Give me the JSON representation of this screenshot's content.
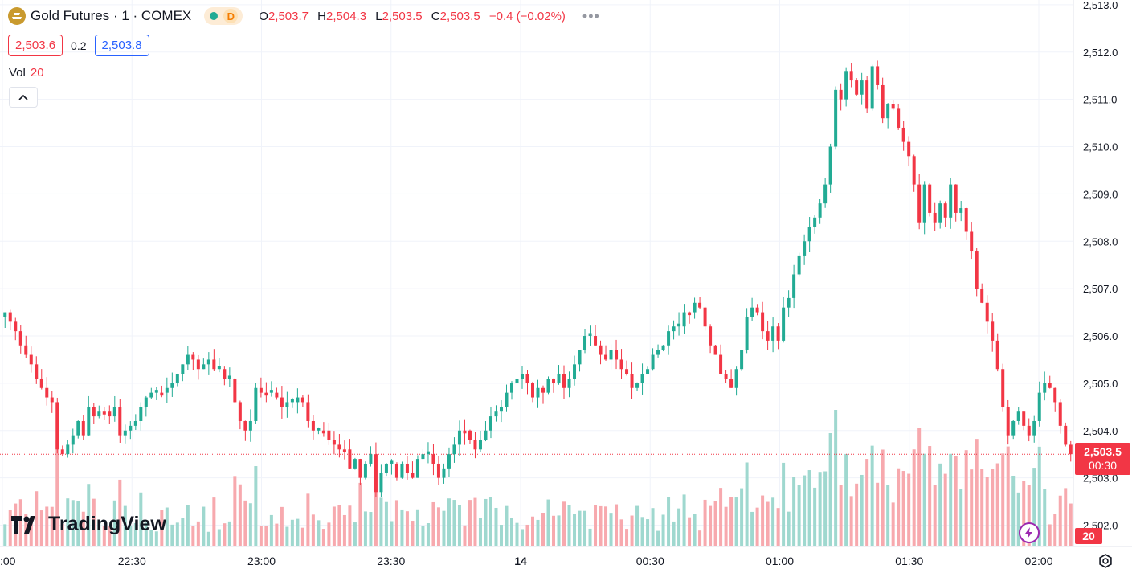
{
  "header": {
    "symbol": "Gold Futures · 1 · COMEX",
    "status_badge": "D",
    "ohlc": {
      "o_label": "O",
      "o": "2,503.7",
      "h_label": "H",
      "h": "2,504.3",
      "l_label": "L",
      "l": "2,503.5",
      "c_label": "C",
      "c": "2,503.5",
      "change": "−0.4 (−0.02%)"
    },
    "more": "•••"
  },
  "quote": {
    "bid": "2,503.6",
    "spread": "0.2",
    "ask": "2,503.8"
  },
  "volume_indicator": {
    "label": "Vol",
    "value": "20"
  },
  "watermark": "TradingView",
  "price_tag": {
    "price": "2,503.5",
    "countdown": "00:30"
  },
  "volume_tag": "20",
  "colors": {
    "up": "#22ab94",
    "down": "#f23645",
    "up_vol": "#9fd8cf",
    "down_vol": "#f7a9ae",
    "grid": "#f0f3fa",
    "text": "#131722"
  },
  "icons": [
    "gold-logo-icon",
    "market-open-dot-icon",
    "collapse-chevron-up-icon",
    "tradingview-logo-icon",
    "lightning-bolt-icon",
    "settings-icon"
  ],
  "chart_data": {
    "type": "candlestick",
    "y_axis": {
      "range": [
        2501.55,
        2513.1
      ],
      "ticks": [
        2502,
        2503,
        2504,
        2505,
        2506,
        2507,
        2508,
        2509,
        2510,
        2511,
        2512,
        2513
      ],
      "tick_labels": [
        "2,502.0",
        "2,503.0",
        "2,504.0",
        "2,505.0",
        "2,506.0",
        "2,507.0",
        "2,508.0",
        "2,509.0",
        "2,510.0",
        "2,511.0",
        "2,512.0",
        "2,513.0"
      ]
    },
    "x_axis": {
      "tick_labels": [
        ":00",
        "22:30",
        "23:00",
        "23:30",
        "14",
        "00:30",
        "01:00",
        "01:30",
        "02:00"
      ],
      "tick_minutes": [
        0,
        30,
        60,
        90,
        120,
        150,
        180,
        210,
        240
      ],
      "range_minutes": [
        0,
        248
      ]
    },
    "last_price": 2503.5,
    "closes": [
      2506.5,
      2506.3,
      2506.1,
      2505.8,
      2505.6,
      2505.4,
      2505.1,
      2504.9,
      2504.7,
      2504.6,
      2503.6,
      2503.5,
      2503.7,
      2503.9,
      2504.2,
      2503.9,
      2504.5,
      2504.3,
      2504.4,
      2504.4,
      2504.3,
      2504.5,
      2503.9,
      2504.0,
      2504.1,
      2504.2,
      2504.5,
      2504.7,
      2504.8,
      2504.8,
      2504.8,
      2504.9,
      2505.0,
      2505.2,
      2505.4,
      2505.6,
      2505.5,
      2505.3,
      2505.4,
      2505.5,
      2505.3,
      2505.3,
      2505.1,
      2505.1,
      2504.6,
      2504.2,
      2504.0,
      2504.2,
      2504.9,
      2504.8,
      2504.8,
      2504.8,
      2504.7,
      2504.5,
      2504.6,
      2504.6,
      2504.7,
      2504.6,
      2504.2,
      2504.0,
      2504.0,
      2504.0,
      2503.8,
      2503.7,
      2503.6,
      2503.6,
      2503.2,
      2503.4,
      2503.0,
      2503.3,
      2503.5,
      2502.7,
      2503.1,
      2503.3,
      2503.3,
      2503.0,
      2503.3,
      2503.1,
      2503.0,
      2503.4,
      2503.5,
      2503.5,
      2503.3,
      2503.0,
      2503.2,
      2503.5,
      2503.7,
      2504.0,
      2504.0,
      2503.8,
      2503.6,
      2503.8,
      2504.0,
      2504.3,
      2504.4,
      2504.5,
      2504.8,
      2505.0,
      2505.1,
      2505.2,
      2505.0,
      2504.7,
      2504.9,
      2504.8,
      2505.1,
      2505.0,
      2505.2,
      2504.9,
      2505.1,
      2505.4,
      2505.7,
      2506.0,
      2506.0,
      2505.8,
      2505.6,
      2505.5,
      2505.7,
      2505.5,
      2505.3,
      2505.2,
      2504.9,
      2505.0,
      2505.2,
      2505.3,
      2505.6,
      2505.7,
      2505.8,
      2506.1,
      2506.2,
      2506.2,
      2506.5,
      2506.5,
      2506.7,
      2506.6,
      2506.2,
      2505.8,
      2505.6,
      2505.2,
      2505.1,
      2504.9,
      2505.3,
      2505.7,
      2506.4,
      2506.6,
      2506.5,
      2506.1,
      2505.9,
      2506.2,
      2505.9,
      2506.6,
      2506.8,
      2507.3,
      2507.7,
      2508.0,
      2508.3,
      2508.5,
      2508.8,
      2509.2,
      2510.0,
      2511.2,
      2511.0,
      2511.6,
      2511.4,
      2511.1,
      2511.4,
      2510.8,
      2511.7,
      2511.3,
      2510.6,
      2510.9,
      2510.8,
      2510.4,
      2510.1,
      2509.8,
      2509.2,
      2508.4,
      2509.2,
      2508.6,
      2508.4,
      2508.8,
      2508.5,
      2509.2,
      2508.6,
      2508.7,
      2508.2,
      2507.8,
      2507.0,
      2506.7,
      2506.3,
      2505.9,
      2505.3,
      2504.5,
      2503.9,
      2504.2,
      2504.4,
      2504.1,
      2503.9,
      2504.2,
      2504.8,
      2505.0,
      2504.9,
      2504.6,
      2504.1,
      2503.7,
      2503.5
    ]
  }
}
